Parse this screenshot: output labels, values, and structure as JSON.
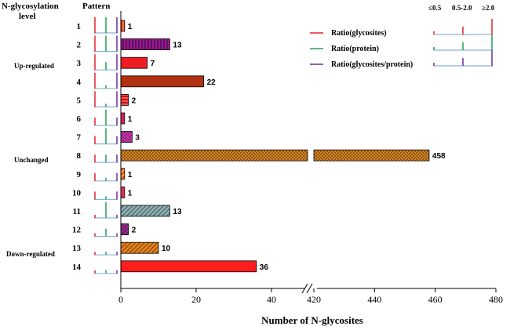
{
  "chart_data": {
    "type": "bar",
    "orientation": "horizontal",
    "title": "",
    "xlabel": "Number of N-glycosites",
    "ylabel": "",
    "row_header": "N-glycosylation level",
    "pattern_header": "Pattern",
    "axis_break": {
      "low_range": [
        0,
        40
      ],
      "high_range": [
        420,
        480
      ]
    },
    "x_ticks": [
      "0",
      "20",
      "40",
      "420",
      "440",
      "460",
      "480"
    ],
    "categories": [
      "1",
      "2",
      "3",
      "4",
      "5",
      "6",
      "7",
      "8",
      "9",
      "10",
      "11",
      "12",
      "13",
      "14"
    ],
    "values": [
      1,
      13,
      7,
      22,
      2,
      1,
      3,
      458,
      1,
      1,
      13,
      2,
      10,
      36
    ],
    "groups": [
      {
        "label": "Up-regulated",
        "rows": [
          "1",
          "2",
          "3",
          "4",
          "5"
        ]
      },
      {
        "label": "Unchanged",
        "rows": [
          "6",
          "7",
          "8",
          "9",
          "10"
        ]
      },
      {
        "label": "Down-regulated",
        "rows": [
          "11",
          "12",
          "13",
          "14"
        ]
      }
    ],
    "bar_styles": [
      {
        "fill": "#ee2020",
        "pattern": "vstripe",
        "alt": "#f08030"
      },
      {
        "fill": "#a01880",
        "pattern": "vstripe",
        "alt": "#5a1070"
      },
      {
        "fill": "#ee1c24",
        "pattern": "none"
      },
      {
        "fill": "#b03010",
        "pattern": "none"
      },
      {
        "fill": "#c01818",
        "pattern": "hstripe",
        "alt": "#ff5050"
      },
      {
        "fill": "#d02060",
        "pattern": "none"
      },
      {
        "fill": "#8a1a8a",
        "pattern": "check",
        "alt": "#d040a0"
      },
      {
        "fill": "#c88a2a",
        "pattern": "check",
        "alt": "#a05010"
      },
      {
        "fill": "#e83020",
        "pattern": "dstripe",
        "alt": "#f0c020"
      },
      {
        "fill": "#e03050",
        "pattern": "none"
      },
      {
        "fill": "#9ab8b8",
        "pattern": "dstripe",
        "alt": "#5a7a80"
      },
      {
        "fill": "#d02050",
        "pattern": "dstripe",
        "alt": "#3030a0"
      },
      {
        "fill": "#c0a020",
        "pattern": "dstripe",
        "alt": "#d04010"
      },
      {
        "fill": "#ff1e1e",
        "pattern": "none"
      }
    ],
    "pattern_glyphs": [
      [
        "high",
        "high",
        "high"
      ],
      [
        "high",
        "high",
        "high"
      ],
      [
        "high",
        "mid",
        "high"
      ],
      [
        "high",
        "low",
        "high"
      ],
      [
        "high",
        "low",
        "high"
      ],
      [
        "mid",
        "high",
        "mid"
      ],
      [
        "mid",
        "high",
        "mid"
      ],
      [
        "mid",
        "mid",
        "mid"
      ],
      [
        "mid",
        "low",
        "mid"
      ],
      [
        "mid",
        "low",
        "mid"
      ],
      [
        "low",
        "high",
        "low"
      ],
      [
        "low",
        "mid",
        "low"
      ],
      [
        "low",
        "low",
        "low"
      ],
      [
        "low",
        "low",
        "low"
      ]
    ],
    "legend": [
      {
        "label": "Ratio(glycosites)",
        "color": "#e8202a"
      },
      {
        "label": "Ratio(protein)",
        "color": "#20a050"
      },
      {
        "label": "Ratio(glycosites/protein)",
        "color": "#6a2a9a"
      }
    ],
    "legend_key": [
      "≤0.5",
      "0.5-2.0",
      "≥2.0"
    ],
    "baseline_color": "#8ab4d8"
  }
}
